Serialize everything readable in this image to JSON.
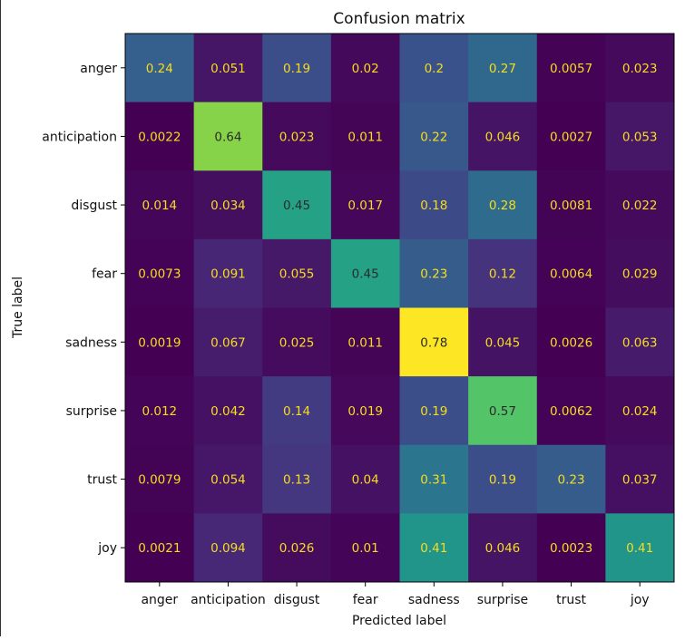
{
  "chart_data": {
    "type": "heatmap",
    "title": "Confusion matrix",
    "xlabel": "Predicted label",
    "ylabel": "True label",
    "x_categories": [
      "anger",
      "anticipation",
      "disgust",
      "fear",
      "sadness",
      "surprise",
      "trust",
      "joy"
    ],
    "y_categories": [
      "anger",
      "anticipation",
      "disgust",
      "fear",
      "sadness",
      "surprise",
      "trust",
      "joy"
    ],
    "values": [
      [
        0.24,
        0.051,
        0.19,
        0.02,
        0.2,
        0.27,
        0.0057,
        0.023
      ],
      [
        0.0022,
        0.64,
        0.023,
        0.011,
        0.22,
        0.046,
        0.0027,
        0.053
      ],
      [
        0.014,
        0.034,
        0.45,
        0.017,
        0.18,
        0.28,
        0.0081,
        0.022
      ],
      [
        0.0073,
        0.091,
        0.055,
        0.45,
        0.23,
        0.12,
        0.0064,
        0.029
      ],
      [
        0.0019,
        0.067,
        0.025,
        0.011,
        0.78,
        0.045,
        0.0026,
        0.063
      ],
      [
        0.012,
        0.042,
        0.14,
        0.019,
        0.19,
        0.57,
        0.0062,
        0.024
      ],
      [
        0.0079,
        0.054,
        0.13,
        0.04,
        0.31,
        0.19,
        0.23,
        0.037
      ],
      [
        0.0021,
        0.094,
        0.026,
        0.01,
        0.41,
        0.046,
        0.0023,
        0.41
      ]
    ],
    "labels": [
      [
        "0.24",
        "0.051",
        "0.19",
        "0.02",
        "0.2",
        "0.27",
        "0.0057",
        "0.023"
      ],
      [
        "0.0022",
        "0.64",
        "0.023",
        "0.011",
        "0.22",
        "0.046",
        "0.0027",
        "0.053"
      ],
      [
        "0.014",
        "0.034",
        "0.45",
        "0.017",
        "0.18",
        "0.28",
        "0.0081",
        "0.022"
      ],
      [
        "0.0073",
        "0.091",
        "0.055",
        "0.45",
        "0.23",
        "0.12",
        "0.0064",
        "0.029"
      ],
      [
        "0.0019",
        "0.067",
        "0.025",
        "0.011",
        "0.78",
        "0.045",
        "0.0026",
        "0.063"
      ],
      [
        "0.012",
        "0.042",
        "0.14",
        "0.019",
        "0.19",
        "0.57",
        "0.0062",
        "0.024"
      ],
      [
        "0.0079",
        "0.054",
        "0.13",
        "0.04",
        "0.31",
        "0.19",
        "0.23",
        "0.037"
      ],
      [
        "0.0021",
        "0.094",
        "0.026",
        "0.01",
        "0.41",
        "0.046",
        "0.0023",
        "0.41"
      ]
    ],
    "colormap": "viridis",
    "value_range": [
      0.0019,
      0.78
    ],
    "colors": {
      "text_on_dark": "#f5dd1e",
      "text_on_light": "#2b2b2b"
    }
  }
}
